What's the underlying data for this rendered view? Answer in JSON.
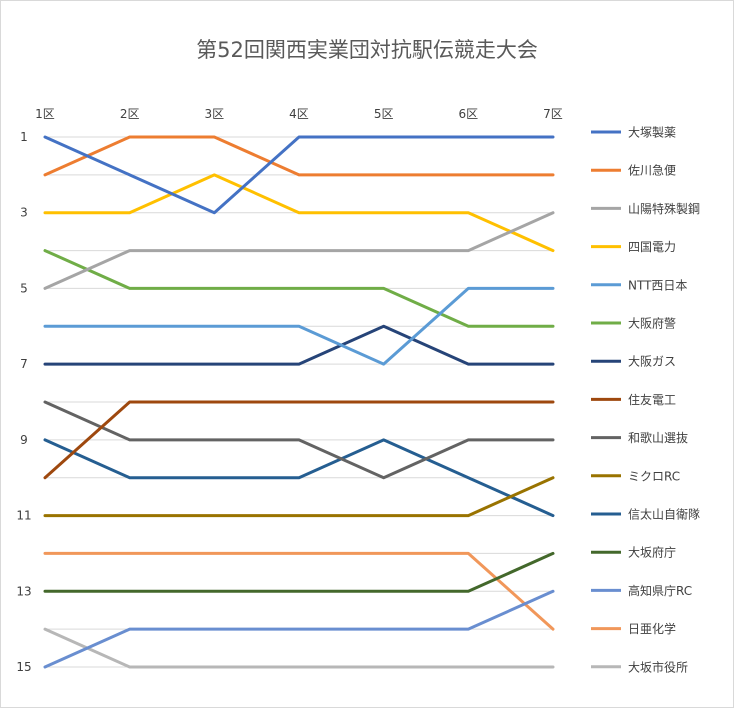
{
  "chart_data": {
    "type": "line",
    "title": "第52回関西実業団対抗駅伝競走大会",
    "categories": [
      "1区",
      "2区",
      "3区",
      "4区",
      "5区",
      "6区",
      "7区"
    ],
    "y_ticks": [
      1,
      3,
      5,
      7,
      9,
      11,
      13,
      15
    ],
    "ylim": [
      1,
      15
    ],
    "y_reversed": true,
    "x_axis_position": "top",
    "grid": true,
    "legend_position": "right",
    "series": [
      {
        "name": "大塚製薬",
        "color": "#4472C4",
        "values": [
          1,
          2,
          3,
          1,
          1,
          1,
          1
        ]
      },
      {
        "name": "佐川急便",
        "color": "#ED7D31",
        "values": [
          2,
          1,
          1,
          2,
          2,
          2,
          2
        ]
      },
      {
        "name": "山陽特殊製鋼",
        "color": "#A5A5A5",
        "values": [
          5,
          4,
          4,
          4,
          4,
          4,
          3
        ]
      },
      {
        "name": "四国電力",
        "color": "#FFC000",
        "values": [
          3,
          3,
          2,
          3,
          3,
          3,
          4
        ]
      },
      {
        "name": "NTT西日本",
        "color": "#5B9BD5",
        "values": [
          6,
          6,
          6,
          6,
          7,
          5,
          5
        ]
      },
      {
        "name": "大阪府警",
        "color": "#70AD47",
        "values": [
          4,
          5,
          5,
          5,
          5,
          6,
          6
        ]
      },
      {
        "name": "大阪ガス",
        "color": "#264478",
        "values": [
          7,
          7,
          7,
          7,
          6,
          7,
          7
        ]
      },
      {
        "name": "住友電工",
        "color": "#9E480E",
        "values": [
          10,
          8,
          8,
          8,
          8,
          8,
          8
        ]
      },
      {
        "name": "和歌山選抜",
        "color": "#636363",
        "values": [
          8,
          9,
          9,
          9,
          10,
          9,
          9
        ]
      },
      {
        "name": "ミクロRC",
        "color": "#997300",
        "values": [
          11,
          11,
          11,
          11,
          11,
          11,
          10
        ]
      },
      {
        "name": "信太山自衛隊",
        "color": "#255E91",
        "values": [
          9,
          10,
          10,
          10,
          9,
          10,
          11
        ]
      },
      {
        "name": "大坂府庁",
        "color": "#43682B",
        "values": [
          13,
          13,
          13,
          13,
          13,
          13,
          12
        ]
      },
      {
        "name": "高知県庁RC",
        "color": "#698ED0",
        "values": [
          15,
          14,
          14,
          14,
          14,
          14,
          13
        ]
      },
      {
        "name": "日亜化学",
        "color": "#F1975A",
        "values": [
          12,
          12,
          12,
          12,
          12,
          12,
          14
        ]
      },
      {
        "name": "大坂市役所",
        "color": "#B7B7B7",
        "values": [
          14,
          15,
          15,
          15,
          15,
          15,
          15
        ]
      }
    ]
  }
}
